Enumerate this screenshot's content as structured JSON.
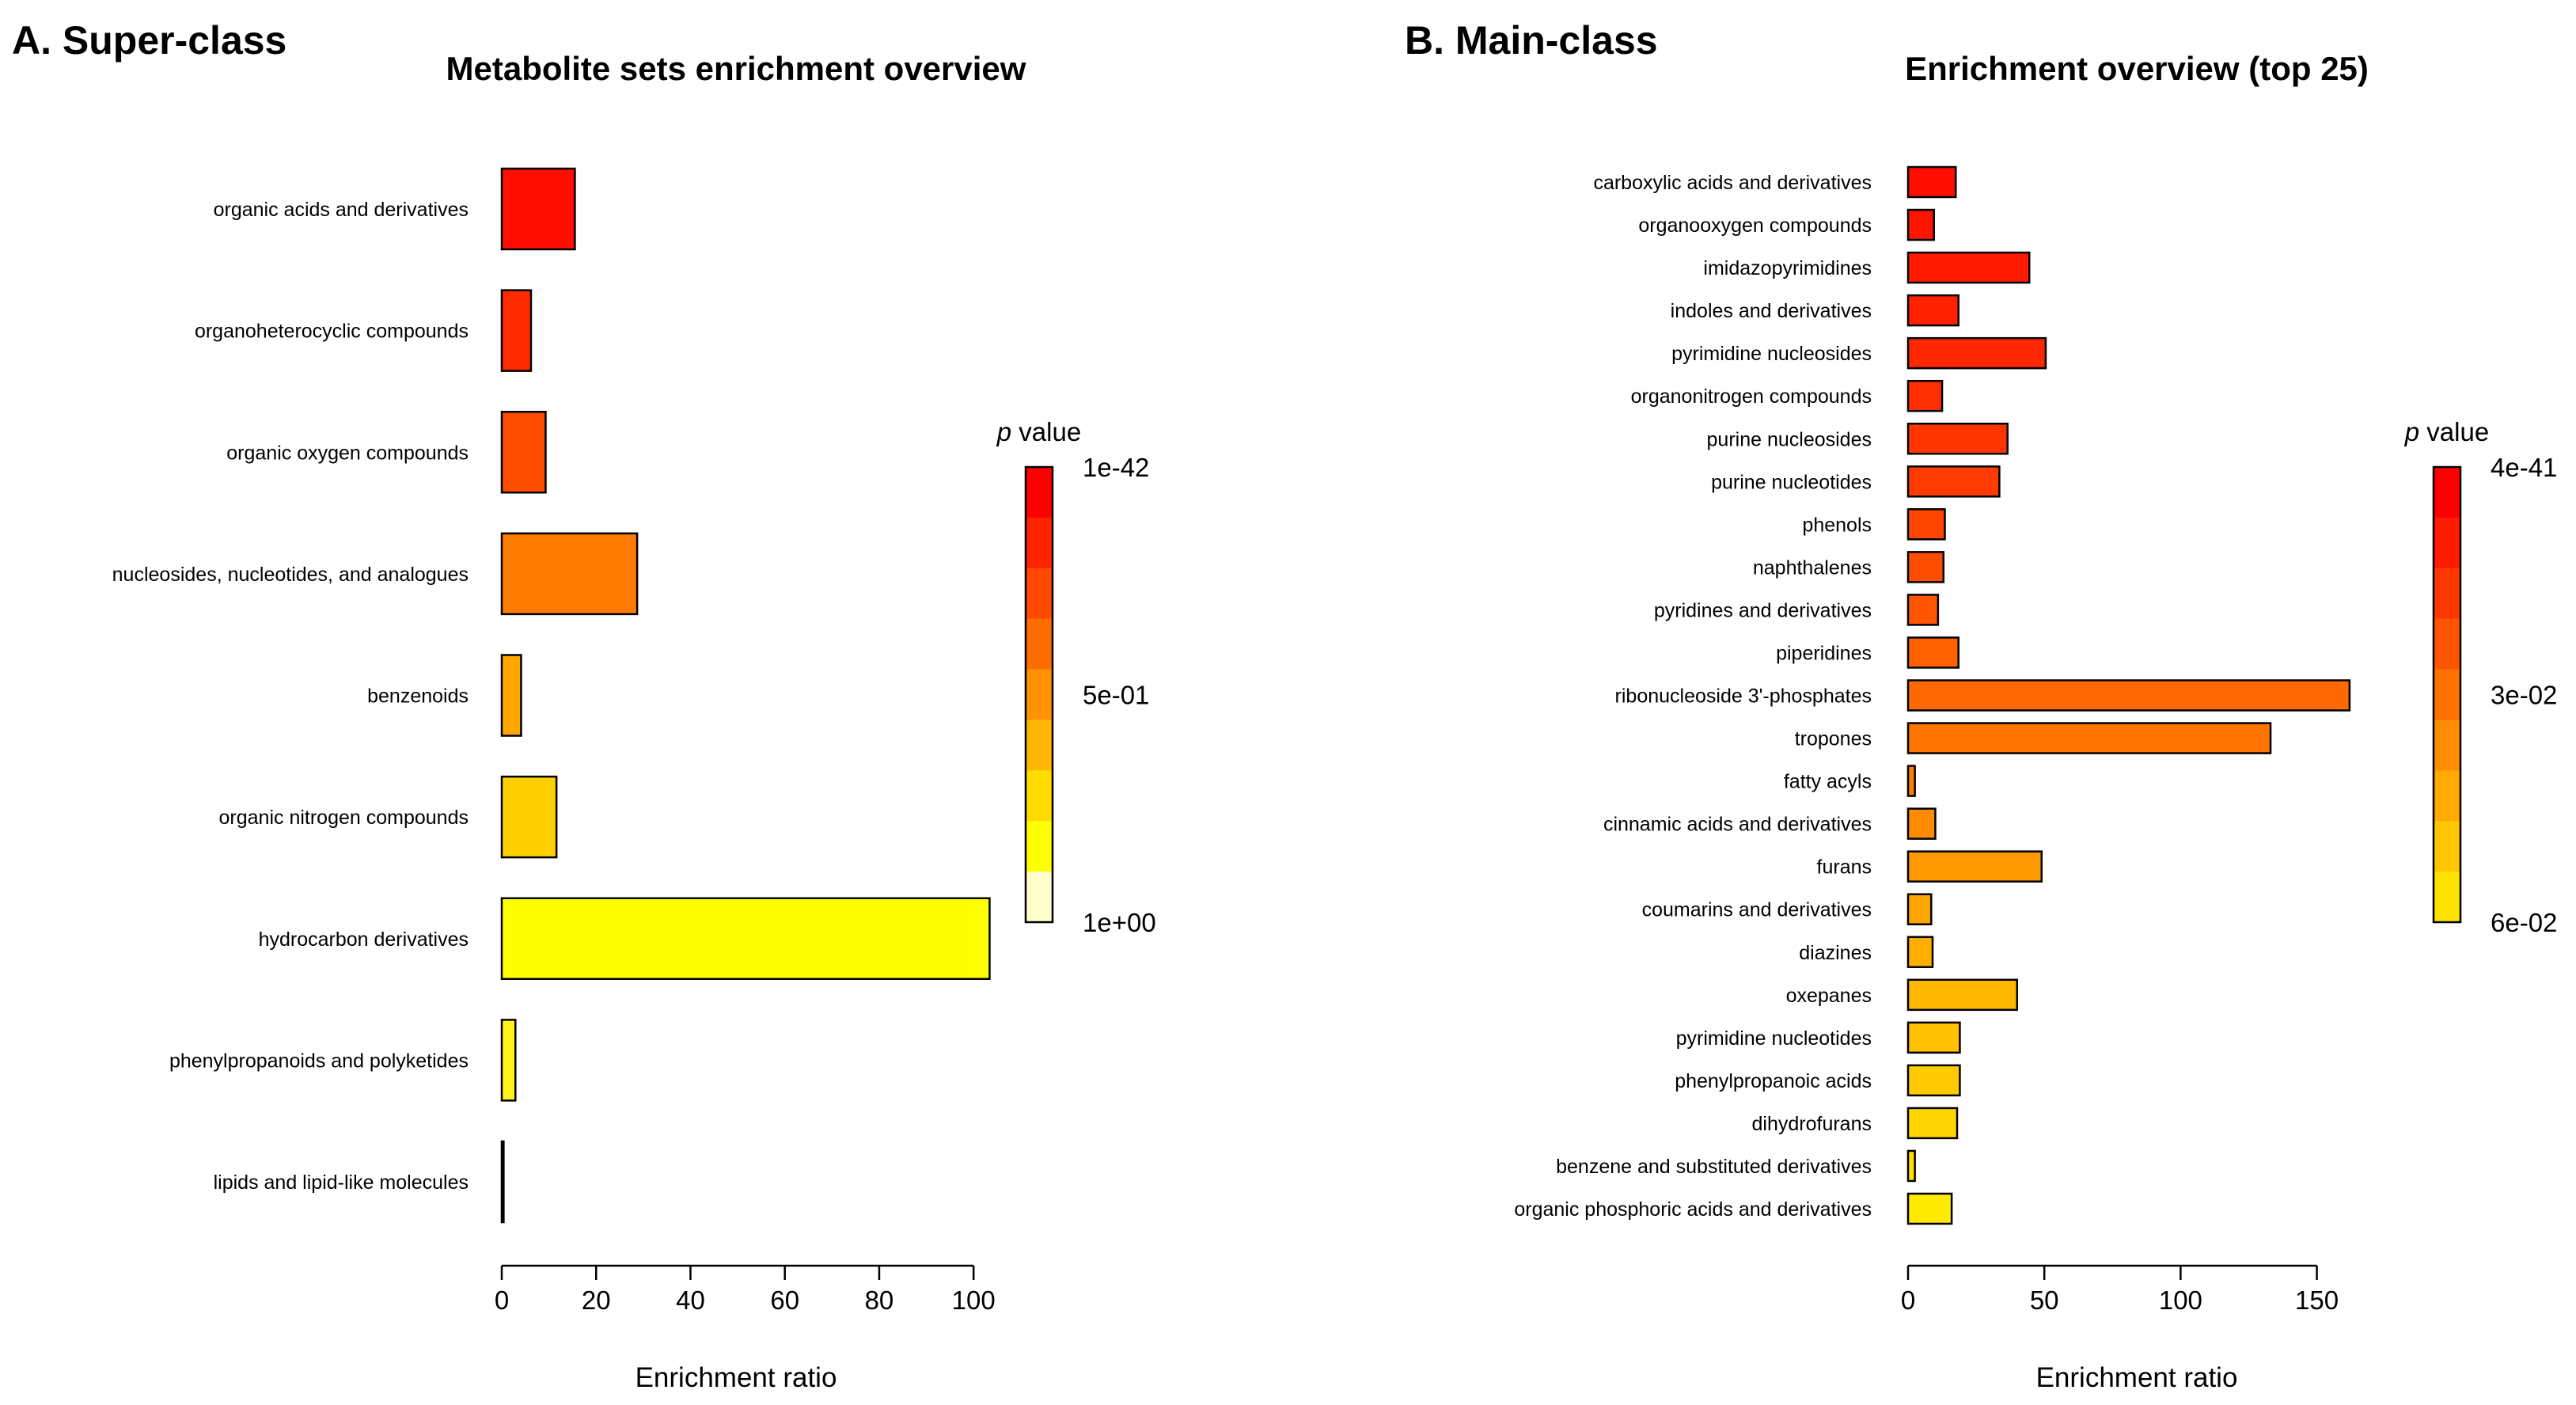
{
  "panels": [
    {
      "label": "A. Super-class",
      "chart_data": {
        "type": "bar",
        "orientation": "horizontal",
        "title": "Metabolite sets enrichment overview",
        "xlabel": "Enrichment ratio",
        "xlim": [
          0,
          105
        ],
        "xticks": [
          0,
          20,
          40,
          60,
          80,
          100
        ],
        "categories": [
          "organic acids and derivatives",
          "organoheterocyclic compounds",
          "organic oxygen compounds",
          "nucleosides, nucleotides, and analogues",
          "benzenoids",
          "organic nitrogen compounds",
          "hydrocarbon derivatives",
          "phenylpropanoids and polyketides",
          "lipids and lipid-like molecules"
        ],
        "values": [
          15.5,
          6.2,
          9.3,
          28.7,
          4.1,
          11.6,
          103.4,
          2.9,
          0.4
        ],
        "colors": [
          "#FF0D00",
          "#FF2A00",
          "#FF4D00",
          "#FF7A00",
          "#FFA600",
          "#FFD000",
          "#FFFF00",
          "#FFF21A",
          "#FFF8C0"
        ],
        "legend": {
          "title_italic": "p",
          "title_rest": " value",
          "tick_labels": [
            "1e-42",
            "5e-01",
            "1e+00"
          ],
          "colors": [
            "#FF0000",
            "#FF2400",
            "#FF4900",
            "#FF6D00",
            "#FF9200",
            "#FFB600",
            "#FFDB00",
            "#FFFF00",
            "#FFFFCC"
          ]
        }
      }
    },
    {
      "label": "B. Main-class",
      "chart_data": {
        "type": "bar",
        "orientation": "horizontal",
        "title": "Enrichment overview (top 25)",
        "xlabel": "Enrichment ratio",
        "xlim": [
          0,
          160
        ],
        "xticks": [
          0,
          50,
          100,
          150
        ],
        "categories": [
          "carboxylic acids and derivatives",
          "organooxygen compounds",
          "imidazopyrimidines",
          "indoles and derivatives",
          "pyrimidine nucleosides",
          "organonitrogen compounds",
          "purine nucleosides",
          "purine nucleotides",
          "phenols",
          "naphthalenes",
          "pyridines and derivatives",
          "piperidines",
          "ribonucleoside 3'-phosphates",
          "tropones",
          "fatty acyls",
          "cinnamic acids and derivatives",
          "furans",
          "coumarins and derivatives",
          "diazines",
          "oxepanes",
          "pyrimidine nucleotides",
          "phenylpropanoic acids",
          "dihydrofurans",
          "benzene and substituted derivatives",
          "organic phosphoric acids and derivatives"
        ],
        "values": [
          17.5,
          9.5,
          44.5,
          18.5,
          50.5,
          12.5,
          36.5,
          33.5,
          13.5,
          13.0,
          11.0,
          18.5,
          162.0,
          133.0,
          2.5,
          10.0,
          49.0,
          8.5,
          9.0,
          40.0,
          19.0,
          19.0,
          18.0,
          2.5,
          16.0
        ],
        "colors": [
          "#FF0D00",
          "#FF1400",
          "#FF1A00",
          "#FF2100",
          "#FF2700",
          "#FF2E00",
          "#FF3500",
          "#FF3B00",
          "#FF4600",
          "#FF4D00",
          "#FF5500",
          "#FF6000",
          "#FF6A00",
          "#FF7500",
          "#FF8000",
          "#FF8C00",
          "#FF9900",
          "#FFA500",
          "#FFAE00",
          "#FFB700",
          "#FFC100",
          "#FFCB00",
          "#FFD600",
          "#FFE000",
          "#FFEA00"
        ],
        "legend": {
          "title_italic": "p",
          "title_rest": " value",
          "tick_labels": [
            "4e-41",
            "3e-02",
            "6e-02"
          ],
          "colors": [
            "#FF0000",
            "#FF1C00",
            "#FF3800",
            "#FF5500",
            "#FF7100",
            "#FF8D00",
            "#FFAA00",
            "#FFC600",
            "#FFE200"
          ]
        }
      }
    }
  ]
}
